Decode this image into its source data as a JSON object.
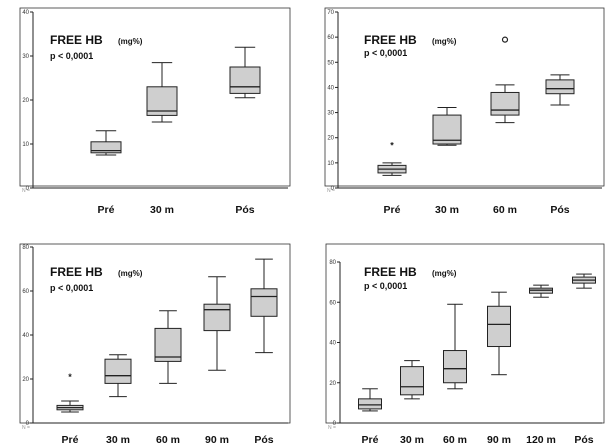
{
  "chart_data": [
    {
      "type": "box",
      "title": "FREE HB",
      "unit": "(mg%)",
      "pvalue": "p < 0,0001",
      "n_label": "N =",
      "categories": [
        "Pré",
        "30 m",
        "Pós"
      ],
      "ylim": [
        0,
        40
      ],
      "yticks": [
        "0",
        "10",
        "20",
        "30",
        "40"
      ],
      "boxes": [
        {
          "min": 7.5,
          "q1": 8,
          "median": 8.5,
          "q3": 10.5,
          "max": 13
        },
        {
          "min": 15,
          "q1": 16.5,
          "median": 17.5,
          "q3": 23,
          "max": 28.5
        },
        {
          "min": 20.5,
          "q1": 21.5,
          "median": 23,
          "q3": 27.5,
          "max": 32
        }
      ],
      "outliers": []
    },
    {
      "type": "box",
      "title": "FREE HB",
      "unit": "(mg%)",
      "pvalue": "p < 0,0001",
      "n_label": "N =",
      "categories": [
        "Pré",
        "30 m",
        "60 m",
        "Pós"
      ],
      "ylim": [
        0,
        70
      ],
      "yticks": [
        "0",
        "10",
        "20",
        "30",
        "40",
        "50",
        "60",
        "70"
      ],
      "boxes": [
        {
          "min": 5,
          "q1": 6,
          "median": 7.5,
          "q3": 9,
          "max": 10
        },
        {
          "min": 17,
          "q1": 17.5,
          "median": 19,
          "q3": 29,
          "max": 32
        },
        {
          "min": 26,
          "q1": 29,
          "median": 31,
          "q3": 38,
          "max": 41
        },
        {
          "min": 33,
          "q1": 37.5,
          "median": 39.5,
          "q3": 43,
          "max": 45
        }
      ],
      "outliers": [
        {
          "group": 0,
          "value": 17,
          "marker": "star"
        },
        {
          "group": 2,
          "value": 59,
          "marker": "circle"
        }
      ]
    },
    {
      "type": "box",
      "title": "FREE HB",
      "unit": "(mg%)",
      "pvalue": "p < 0,0001",
      "n_label": "N =",
      "categories": [
        "Pré",
        "30 m",
        "60 m",
        "90 m",
        "Pós"
      ],
      "ylim": [
        0,
        80
      ],
      "yticks": [
        "0",
        "20",
        "40",
        "60",
        "80"
      ],
      "boxes": [
        {
          "min": 5,
          "q1": 6,
          "median": 7,
          "q3": 8,
          "max": 10
        },
        {
          "min": 12,
          "q1": 18,
          "median": 21.5,
          "q3": 29,
          "max": 31
        },
        {
          "min": 18,
          "q1": 28,
          "median": 30,
          "q3": 43,
          "max": 51
        },
        {
          "min": 24,
          "q1": 42,
          "median": 51.5,
          "q3": 54,
          "max": 66.5
        },
        {
          "min": 32,
          "q1": 48.5,
          "median": 57.5,
          "q3": 61,
          "max": 74.5
        }
      ],
      "outliers": [
        {
          "group": 0,
          "value": 21,
          "marker": "star"
        }
      ]
    },
    {
      "type": "box",
      "title": "FREE HB",
      "unit": "(mg%)",
      "pvalue": "p < 0,0001",
      "n_label": "N =",
      "categories": [
        "Pré",
        "30 m",
        "60 m",
        "90 m",
        "120 m",
        "Pós"
      ],
      "ylim": [
        0,
        80
      ],
      "yticks": [
        "0",
        "20",
        "40",
        "60",
        "80"
      ],
      "boxes": [
        {
          "min": 6,
          "q1": 7,
          "median": 9,
          "q3": 12,
          "max": 17
        },
        {
          "min": 12,
          "q1": 14,
          "median": 18,
          "q3": 28,
          "max": 31
        },
        {
          "min": 17,
          "q1": 20,
          "median": 27,
          "q3": 36,
          "max": 59
        },
        {
          "min": 24,
          "q1": 38,
          "median": 49,
          "q3": 58,
          "max": 65
        },
        {
          "min": 62.5,
          "q1": 64.5,
          "median": 66,
          "q3": 67,
          "max": 68.5
        },
        {
          "min": 67,
          "q1": 69.5,
          "median": 71,
          "q3": 72.5,
          "max": 74
        }
      ],
      "outliers": []
    }
  ]
}
